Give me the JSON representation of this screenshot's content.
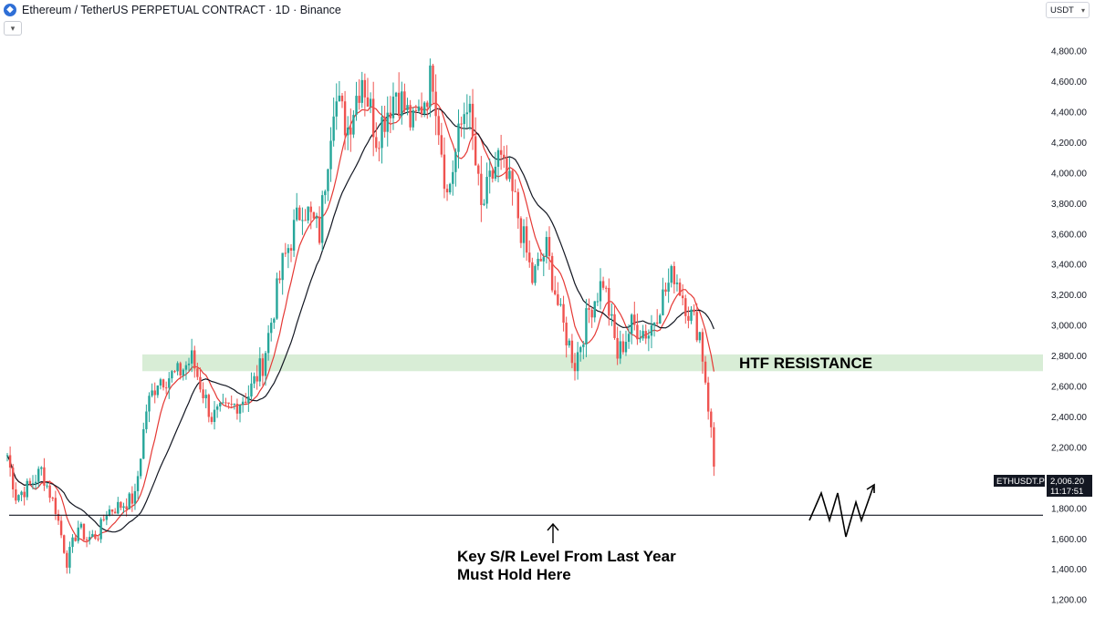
{
  "header": {
    "logo_icon": "ethereum-logo-icon",
    "title": "Ethereum / TetherUS PERPETUAL CONTRACT · 1D · Binance"
  },
  "currency_selector": {
    "label": "USDT",
    "icon": "chevron-down-icon"
  },
  "collapse_icon": "chevron-down-icon",
  "chart_data": {
    "type": "candlestick",
    "symbol": "ETHUSDT.P",
    "last_price": "2,006.20",
    "countdown": "11:17:51",
    "y_axis_ticks": [
      "4,800.00",
      "4,600.00",
      "4,400.00",
      "4,200.00",
      "4,000.00",
      "3,800.00",
      "3,600.00",
      "3,400.00",
      "3,200.00",
      "3,000.00",
      "2,800.00",
      "2,600.00",
      "2,400.00",
      "2,200.00",
      "2,000.00",
      "1,800.00",
      "1,600.00",
      "1,400.00",
      "1,200.00"
    ],
    "y_tick_values": [
      4800,
      4600,
      4400,
      4200,
      4000,
      3800,
      3600,
      3400,
      3200,
      3000,
      2800,
      2600,
      2400,
      2200,
      2000,
      1800,
      1600,
      1400,
      1200
    ],
    "ylim": [
      1150,
      5000
    ],
    "candles_count": 250,
    "anchors": [
      [
        0,
        2150
      ],
      [
        3,
        1880
      ],
      [
        8,
        1950
      ],
      [
        12,
        2050
      ],
      [
        17,
        1800
      ],
      [
        21,
        1450
      ],
      [
        25,
        1680
      ],
      [
        28,
        1600
      ],
      [
        32,
        1630
      ],
      [
        35,
        1780
      ],
      [
        40,
        1820
      ],
      [
        45,
        1870
      ],
      [
        49,
        2450
      ],
      [
        53,
        2650
      ],
      [
        60,
        2680
      ],
      [
        65,
        2780
      ],
      [
        72,
        2400
      ],
      [
        78,
        2450
      ],
      [
        85,
        2550
      ],
      [
        90,
        2750
      ],
      [
        97,
        3400
      ],
      [
        104,
        3800
      ],
      [
        110,
        3600
      ],
      [
        115,
        4500
      ],
      [
        120,
        4300
      ],
      [
        125,
        4650
      ],
      [
        130,
        4250
      ],
      [
        137,
        4550
      ],
      [
        143,
        4300
      ],
      [
        150,
        4650
      ],
      [
        155,
        3850
      ],
      [
        162,
        4500
      ],
      [
        167,
        3750
      ],
      [
        173,
        4100
      ],
      [
        179,
        3800
      ],
      [
        185,
        3300
      ],
      [
        190,
        3500
      ],
      [
        195,
        3050
      ],
      [
        200,
        2750
      ],
      [
        205,
        3100
      ],
      [
        210,
        3300
      ],
      [
        215,
        2800
      ],
      [
        220,
        3000
      ],
      [
        226,
        2950
      ],
      [
        230,
        3150
      ],
      [
        235,
        3350
      ],
      [
        240,
        3100
      ],
      [
        244,
        2950
      ],
      [
        246,
        2650
      ],
      [
        248,
        2300
      ],
      [
        250,
        1850
      ],
      [
        252,
        2020
      ]
    ],
    "series": [
      {
        "name": "short-ma",
        "color": "#e53935",
        "period": 9
      },
      {
        "name": "long-ma",
        "color": "#131722",
        "period": 21
      }
    ],
    "up_color": "#26a69a",
    "down_color": "#ef5350",
    "resistance_zone": {
      "low": 2700,
      "high": 2810,
      "label": "HTF RESISTANCE",
      "color": "#d8edd6"
    },
    "support_level": {
      "value": 1755,
      "label_line1": "Key S/R Level From Last Year",
      "label_line2": "Must Hold Here"
    }
  }
}
